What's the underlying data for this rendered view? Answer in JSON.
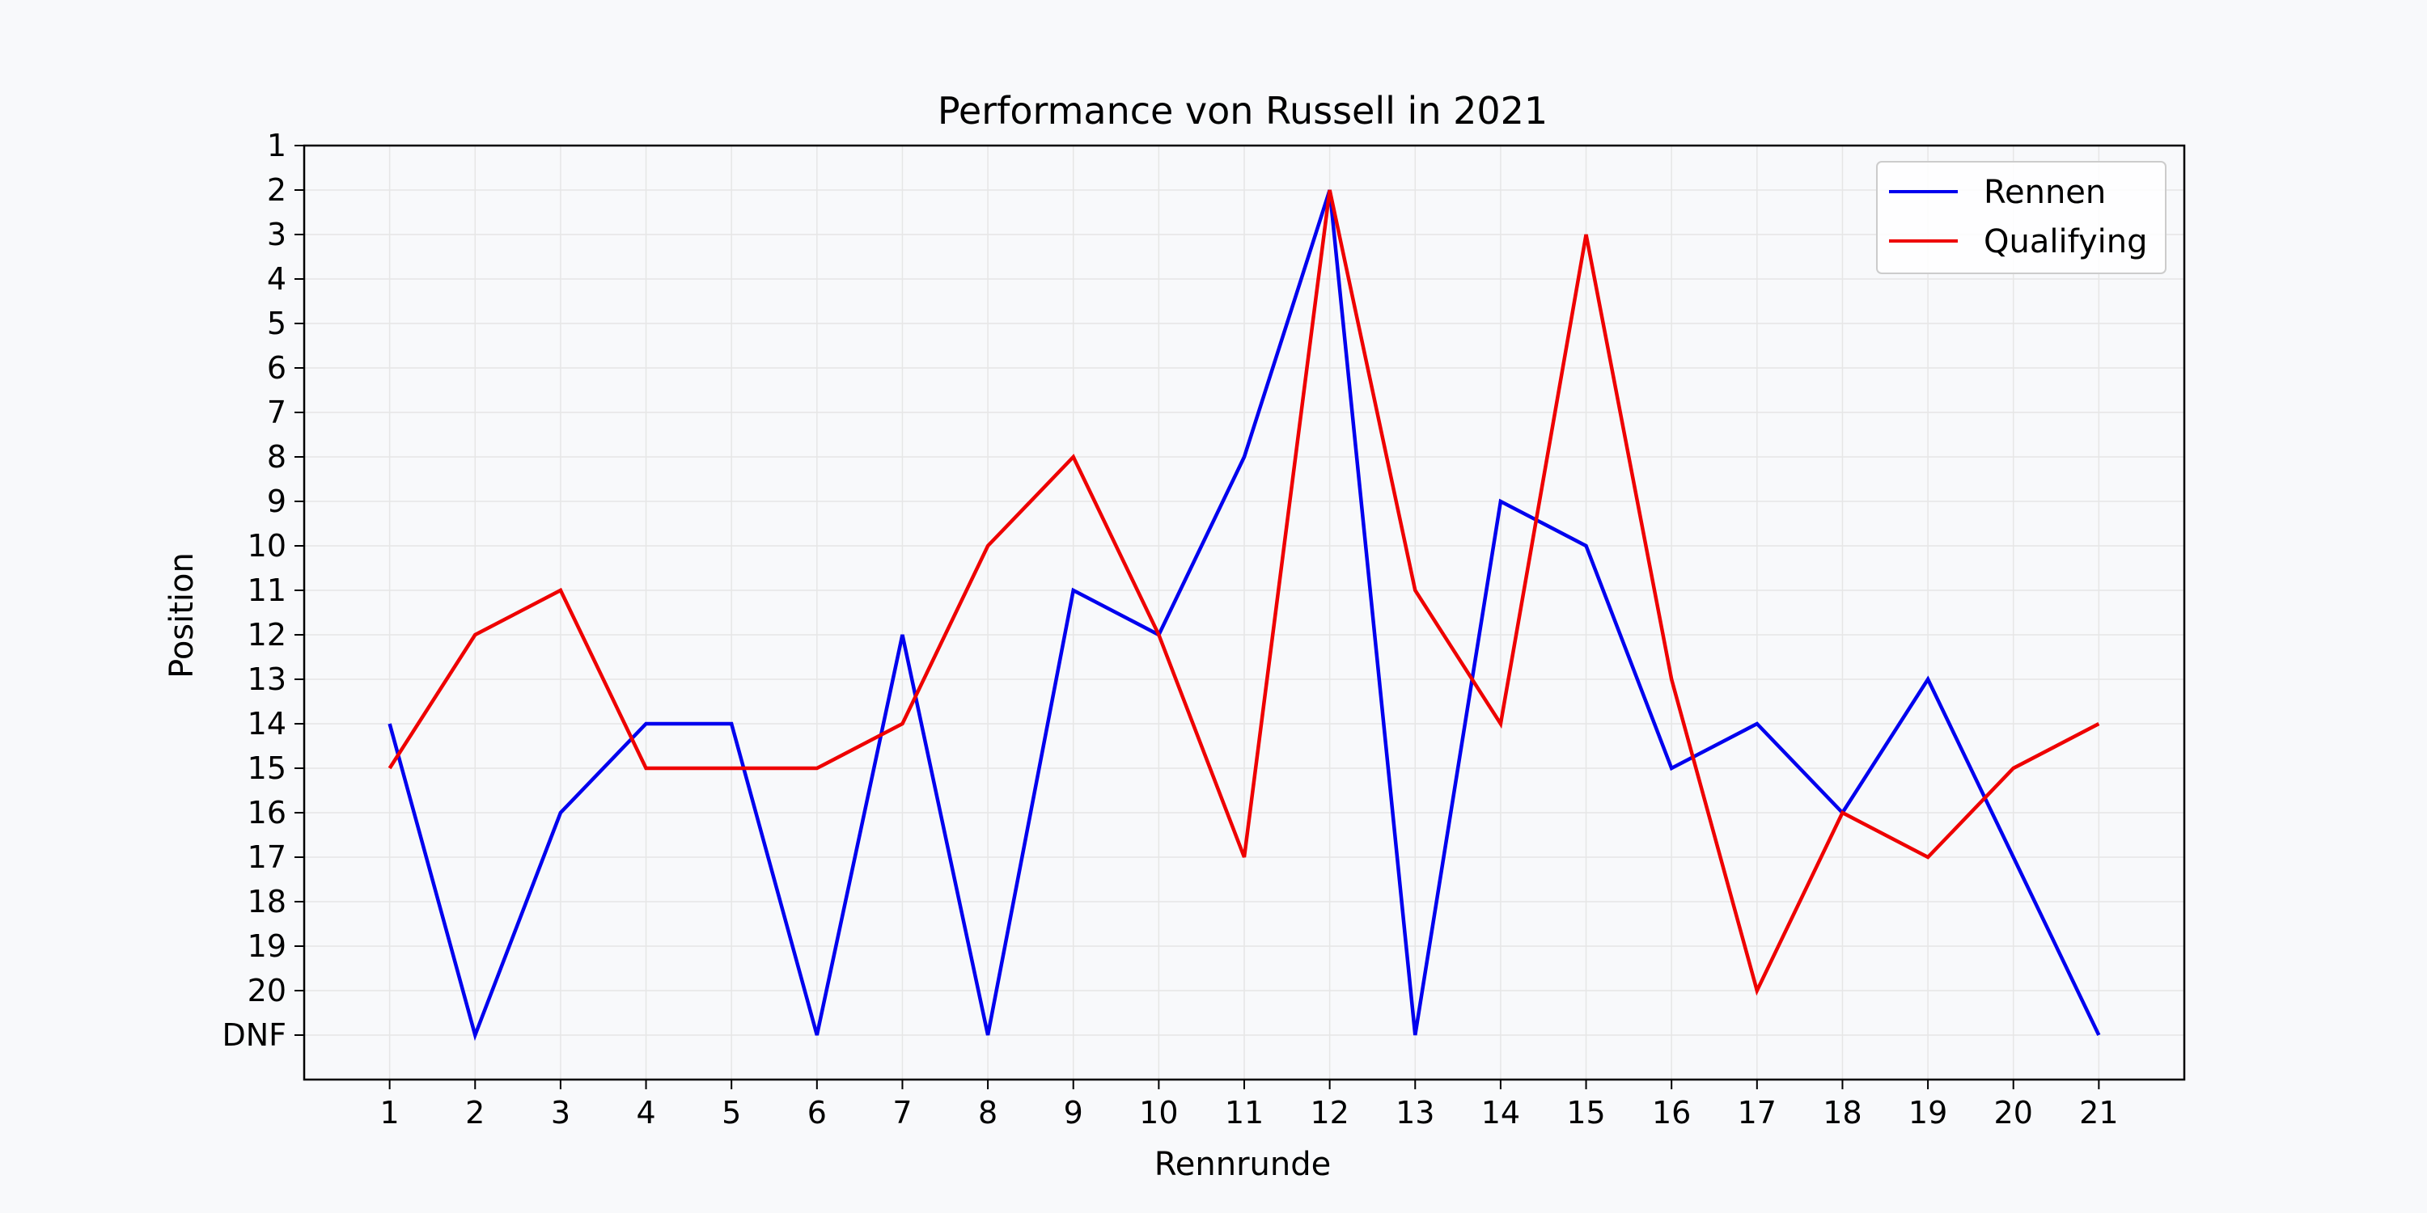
{
  "chart_data": {
    "type": "line",
    "title": "Performance von Russell in 2021",
    "xlabel": "Rennrunde",
    "ylabel": "Position",
    "x": [
      1,
      2,
      3,
      4,
      5,
      6,
      7,
      8,
      9,
      10,
      11,
      12,
      13,
      14,
      15,
      16,
      17,
      18,
      19,
      20,
      21
    ],
    "x_ticks": [
      "1",
      "2",
      "3",
      "4",
      "5",
      "6",
      "7",
      "8",
      "9",
      "10",
      "11",
      "12",
      "13",
      "14",
      "15",
      "16",
      "17",
      "18",
      "19",
      "20",
      "21"
    ],
    "y_ticks": [
      "1",
      "2",
      "3",
      "4",
      "5",
      "6",
      "7",
      "8",
      "9",
      "10",
      "11",
      "12",
      "13",
      "14",
      "15",
      "16",
      "17",
      "18",
      "19",
      "20",
      "DNF"
    ],
    "y_tick_values": [
      1,
      2,
      3,
      4,
      5,
      6,
      7,
      8,
      9,
      10,
      11,
      12,
      13,
      14,
      15,
      16,
      17,
      18,
      19,
      20,
      21
    ],
    "xlim": [
      0,
      22
    ],
    "ylim": [
      22,
      1
    ],
    "y_inverted": true,
    "grid": true,
    "legend_position": "top-right",
    "series": [
      {
        "name": "Rennen",
        "color": "#0000ee",
        "values": [
          14,
          21,
          16,
          14,
          14,
          21,
          12,
          21,
          11,
          12,
          8,
          2,
          21,
          9,
          10,
          15,
          14,
          16,
          13,
          17,
          21
        ]
      },
      {
        "name": "Qualifying",
        "color": "#ee0000",
        "values": [
          15,
          12,
          11,
          15,
          15,
          15,
          14,
          10,
          8,
          12,
          17,
          2,
          11,
          14,
          3,
          13,
          20,
          16,
          17,
          15,
          14
        ]
      }
    ]
  }
}
